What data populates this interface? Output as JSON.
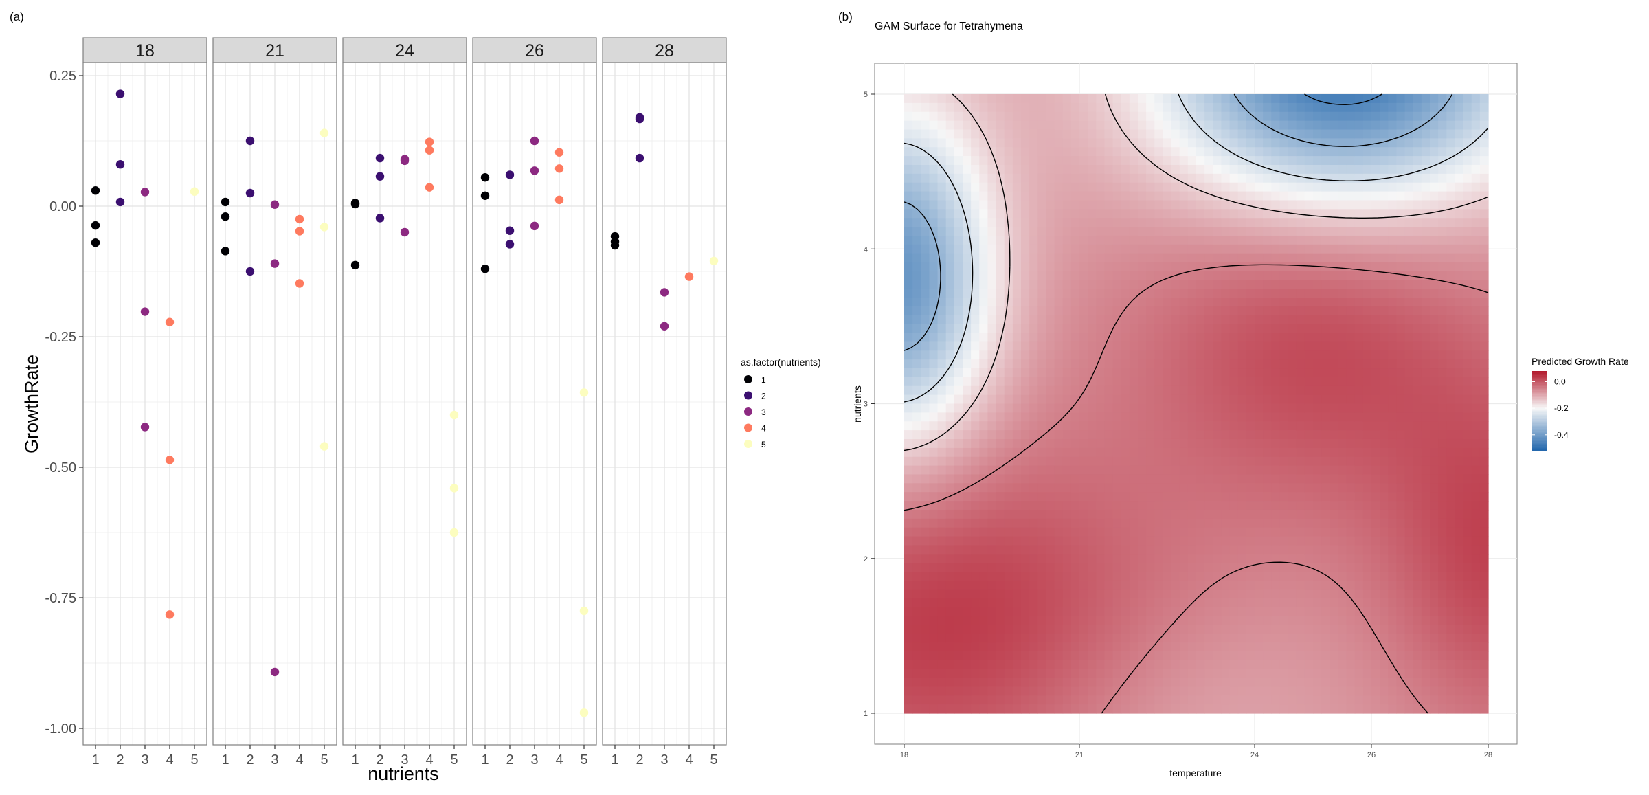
{
  "panels": {
    "a_label": "(a)",
    "b_label": "(b)"
  },
  "chart_data": [
    {
      "type": "scatter",
      "facets": [
        "18",
        "21",
        "24",
        "26",
        "28"
      ],
      "xlabel": "nutrients",
      "ylabel": "GrowthRate",
      "x_ticks": [
        "1",
        "2",
        "3",
        "4",
        "5"
      ],
      "y_ticks": [
        "0.25",
        "0.00",
        "-0.25",
        "-0.50",
        "-0.75",
        "-1.00"
      ],
      "xlim": [
        0.5,
        5.5
      ],
      "ylim": [
        -1.03,
        0.25
      ],
      "grid": true,
      "legend": {
        "title": "as.factor(nutrients)",
        "position": "right",
        "entries": [
          "1",
          "2",
          "3",
          "4",
          "5"
        ],
        "colors": [
          "#000004",
          "#3b0f70",
          "#8c2981",
          "#fe7a5f",
          "#fcfdbf"
        ]
      },
      "series": [
        {
          "facet": "18",
          "points": [
            [
              1,
              0.03
            ],
            [
              1,
              -0.037
            ],
            [
              1,
              -0.07
            ],
            [
              2,
              0.215
            ],
            [
              2,
              0.08
            ],
            [
              2,
              0.008
            ],
            [
              3,
              0.027
            ],
            [
              3,
              -0.202
            ],
            [
              3,
              -0.423
            ],
            [
              4,
              -0.222
            ],
            [
              4,
              -0.486
            ],
            [
              4,
              -0.782
            ],
            [
              5,
              0.028
            ]
          ]
        },
        {
          "facet": "21",
          "points": [
            [
              1,
              0.008
            ],
            [
              1,
              -0.02
            ],
            [
              1,
              -0.086
            ],
            [
              2,
              0.125
            ],
            [
              2,
              0.025
            ],
            [
              2,
              -0.125
            ],
            [
              3,
              0.003
            ],
            [
              3,
              -0.11
            ],
            [
              3,
              -0.892
            ],
            [
              4,
              -0.025
            ],
            [
              4,
              -0.048
            ],
            [
              4,
              -0.148
            ],
            [
              5,
              0.14
            ],
            [
              5,
              -0.04
            ],
            [
              5,
              -0.46
            ]
          ]
        },
        {
          "facet": "24",
          "points": [
            [
              1,
              0.006
            ],
            [
              1,
              0.004
            ],
            [
              1,
              -0.113
            ],
            [
              2,
              0.092
            ],
            [
              2,
              0.057
            ],
            [
              2,
              -0.023
            ],
            [
              3,
              0.09
            ],
            [
              3,
              0.087
            ],
            [
              3,
              -0.05
            ],
            [
              4,
              0.123
            ],
            [
              4,
              0.107
            ],
            [
              4,
              0.036
            ],
            [
              5,
              -0.4
            ],
            [
              5,
              -0.54
            ],
            [
              5,
              -0.625
            ]
          ]
        },
        {
          "facet": "26",
          "points": [
            [
              1,
              0.055
            ],
            [
              1,
              0.02
            ],
            [
              1,
              -0.12
            ],
            [
              2,
              0.06
            ],
            [
              2,
              -0.047
            ],
            [
              2,
              -0.073
            ],
            [
              3,
              0.125
            ],
            [
              3,
              0.068
            ],
            [
              3,
              -0.038
            ],
            [
              4,
              0.103
            ],
            [
              4,
              0.072
            ],
            [
              4,
              0.012
            ],
            [
              5,
              -0.357
            ],
            [
              5,
              -0.775
            ],
            [
              5,
              -0.97
            ]
          ]
        },
        {
          "facet": "28",
          "points": [
            [
              1,
              -0.058
            ],
            [
              1,
              -0.068
            ],
            [
              1,
              -0.075
            ],
            [
              2,
              0.17
            ],
            [
              2,
              0.167
            ],
            [
              2,
              0.092
            ],
            [
              3,
              -0.165
            ],
            [
              3,
              -0.23
            ],
            [
              4,
              -0.135
            ],
            [
              5,
              -0.105
            ]
          ]
        }
      ]
    },
    {
      "type": "heatmap",
      "title": "GAM Surface for Tetrahymena",
      "xlabel": "temperature",
      "ylabel": "nutrients",
      "x_ticks": [
        "18",
        "21",
        "24",
        "26",
        "28"
      ],
      "y_ticks": [
        "1",
        "2",
        "3",
        "4",
        "5"
      ],
      "xlim": [
        18,
        28
      ],
      "ylim": [
        1,
        5
      ],
      "legend": {
        "title": "Predicted Growth Rate",
        "position": "right",
        "ticks": [
          "0.0",
          "-0.2",
          "-0.4"
        ],
        "range": [
          -0.52,
          0.08
        ],
        "colors": [
          "#2166ac",
          "#f7f7f7",
          "#b2182b"
        ]
      },
      "contours": true
    }
  ]
}
